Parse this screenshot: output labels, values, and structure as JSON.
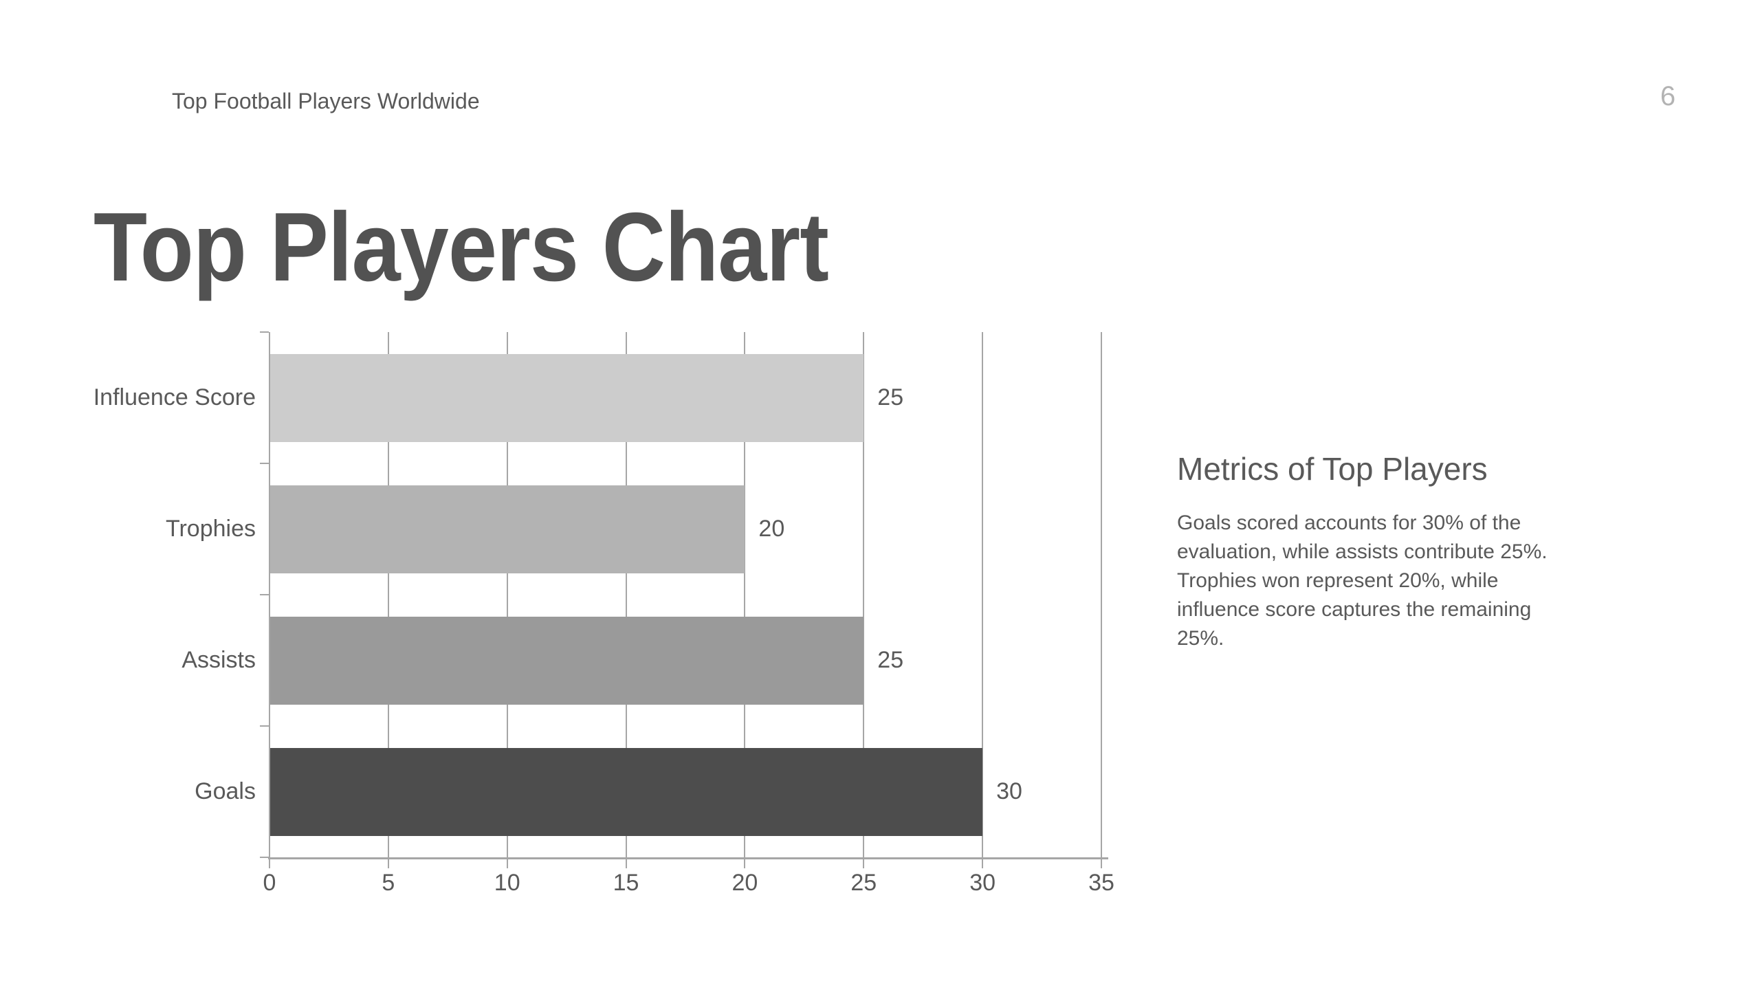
{
  "slide": {
    "header": "Top Football Players Worldwide",
    "page_number": "6",
    "title": "Top Players Chart"
  },
  "side_text": {
    "heading": "Metrics of Top Players",
    "body": "Goals scored accounts for 30% of the\nevaluation, while assists contribute 25%.\nTrophies won represent 20%, while\ninfluence score captures the remaining\n25%."
  },
  "chart_data": {
    "type": "bar",
    "orientation": "horizontal",
    "title": "",
    "xlabel": "",
    "ylabel": "",
    "categories": [
      "Influence Score",
      "Trophies",
      "Assists",
      "Goals"
    ],
    "values": [
      25,
      20,
      25,
      30
    ],
    "value_labels": [
      "25",
      "20",
      "25",
      "30"
    ],
    "bar_colors": [
      "#cccccc",
      "#b3b3b3",
      "#9a9a9a",
      "#4d4d4d"
    ],
    "xlim": [
      0,
      35
    ],
    "x_ticks": [
      "0",
      "5",
      "10",
      "15",
      "20",
      "25",
      "30",
      "35"
    ],
    "grid": true,
    "legend": false,
    "axis_color": "#a6a6a6",
    "text_color": "#595959"
  }
}
